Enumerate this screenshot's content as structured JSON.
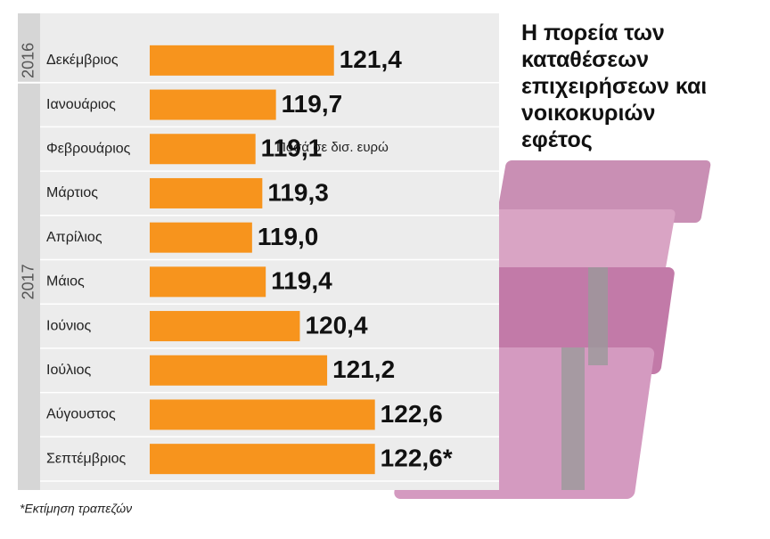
{
  "chart_data": {
    "type": "bar",
    "orientation": "horizontal",
    "title": "Η πορεία των καταθέσεων επιχειρήσεων και νοικοκυριών εφέτος",
    "subtitle": "Ποσά σε δισ. ευρώ",
    "note": "*Εκτίμηση τραπεζών",
    "group_labels": [
      "2016",
      "2017"
    ],
    "categories": [
      "Δεκέμβριος",
      "Ιανουάριος",
      "Φεβρουάριος",
      "Μάρτιος",
      "Απρίλιος",
      "Μάιος",
      "Ιούνιος",
      "Ιούλιος",
      "Αύγουστος",
      "Σεπτέμβριος"
    ],
    "values": [
      121.4,
      119.7,
      119.1,
      119.3,
      119.0,
      119.4,
      120.4,
      121.2,
      122.6,
      122.6
    ],
    "value_labels": [
      "121,4",
      "119,7",
      "119,1",
      "119,3",
      "119,0",
      "119,4",
      "120,4",
      "121,2",
      "122,6",
      "122,6*"
    ],
    "color": "#f7941d",
    "xlim": [
      116,
      130
    ]
  }
}
